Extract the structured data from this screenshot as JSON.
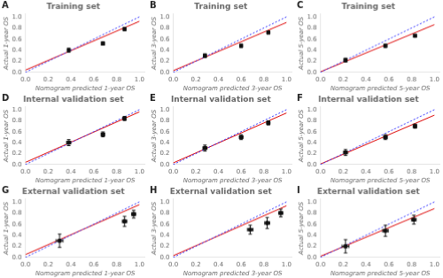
{
  "chart_data": [
    {
      "type": "scatter",
      "title": "Training set",
      "annotations": [
        "A"
      ],
      "x_label": "Nomogram predicted 1-year OS",
      "y_label": "Actual 1-year OS",
      "xlim": [
        0.0,
        1.05
      ],
      "ylim": [
        0.0,
        1.05
      ],
      "xticks": [
        {
          "value": 0.0,
          "label": "0.0"
        },
        0.2,
        0.4,
        0.6,
        0.8,
        {
          "value": 1.0,
          "label": "1.0"
        }
      ],
      "yticks": [
        {
          "value": 0.0,
          "label": "0.0"
        },
        0.2,
        0.4,
        0.6,
        0.8,
        {
          "value": 1.0,
          "label": "1.0"
        }
      ],
      "grid": false,
      "series": [
        {
          "type": "line",
          "line_style": "dotted",
          "color": "#3333ff",
          "x": [
            0,
            1
          ],
          "values": [
            0,
            1
          ]
        },
        {
          "type": "line",
          "line_style": "solid",
          "color": "#dd0000",
          "x": [
            0.0,
            1.0
          ],
          "values": [
            0.04,
            0.92
          ]
        },
        {
          "type": "scatter",
          "marker": "square",
          "color": "#111111",
          "x": [
            0.38,
            0.68,
            0.87
          ],
          "values": [
            0.4,
            0.52,
            0.78
          ],
          "yerr": [
            0.035,
            0.03,
            0.025
          ],
          "xerr": [
            0.012,
            0.01,
            0.01
          ]
        }
      ]
    },
    {
      "type": "scatter",
      "title": "Training set",
      "annotations": [
        "B"
      ],
      "x_label": "Nomogram predicted 3-year OS",
      "y_label": "Actual 3-year OS",
      "xlim": [
        0.0,
        1.05
      ],
      "ylim": [
        0.0,
        1.05
      ],
      "xticks": [
        {
          "value": 0.0,
          "label": "0.0"
        },
        0.2,
        0.4,
        0.6,
        0.8,
        {
          "value": 1.0,
          "label": "1.0"
        }
      ],
      "yticks": [
        {
          "value": 0.0,
          "label": "0.0"
        },
        0.2,
        0.4,
        0.6,
        0.8,
        {
          "value": 1.0,
          "label": "1.0"
        }
      ],
      "grid": false,
      "series": [
        {
          "type": "line",
          "line_style": "dotted",
          "color": "#3333ff",
          "x": [
            0,
            1
          ],
          "values": [
            0,
            1
          ]
        },
        {
          "type": "line",
          "line_style": "solid",
          "color": "#dd0000",
          "x": [
            0.0,
            1.0
          ],
          "values": [
            0.03,
            0.9
          ]
        },
        {
          "type": "scatter",
          "marker": "square",
          "color": "#111111",
          "x": [
            0.28,
            0.6,
            0.84
          ],
          "values": [
            0.3,
            0.48,
            0.72
          ],
          "yerr": [
            0.035,
            0.03,
            0.025
          ],
          "xerr": [
            0.012,
            0.01,
            0.01
          ]
        }
      ]
    },
    {
      "type": "scatter",
      "title": "Training set",
      "annotations": [
        "C"
      ],
      "x_label": "Nomogram predicted 5-year OS",
      "y_label": "Actual 5-year OS",
      "xlim": [
        0.0,
        1.05
      ],
      "ylim": [
        0.0,
        1.05
      ],
      "xticks": [
        {
          "value": 0.0,
          "label": "0.0"
        },
        0.2,
        0.4,
        0.6,
        0.8,
        {
          "value": 1.0,
          "label": "1.0"
        }
      ],
      "yticks": [
        {
          "value": 0.0,
          "label": "0.0"
        },
        0.2,
        0.4,
        0.6,
        0.8,
        {
          "value": 1.0,
          "label": "1.0"
        }
      ],
      "grid": false,
      "series": [
        {
          "type": "line",
          "line_style": "dotted",
          "color": "#3333ff",
          "x": [
            0,
            1
          ],
          "values": [
            0,
            1
          ]
        },
        {
          "type": "line",
          "line_style": "solid",
          "color": "#dd0000",
          "x": [
            0.0,
            1.0
          ],
          "values": [
            0.01,
            0.86
          ]
        },
        {
          "type": "scatter",
          "marker": "square",
          "color": "#111111",
          "x": [
            0.22,
            0.57,
            0.83
          ],
          "values": [
            0.22,
            0.48,
            0.66
          ],
          "yerr": [
            0.035,
            0.03,
            0.025
          ],
          "xerr": [
            0.012,
            0.01,
            0.01
          ]
        }
      ]
    },
    {
      "type": "scatter",
      "title": "Internal validation set",
      "annotations": [
        "D"
      ],
      "x_label": "Nomogram predicted 1-year OS",
      "y_label": "Actual 1-year OS",
      "xlim": [
        0.0,
        1.05
      ],
      "ylim": [
        0.0,
        1.05
      ],
      "xticks": [
        {
          "value": 0.0,
          "label": "0.0"
        },
        0.2,
        0.4,
        0.6,
        0.8,
        {
          "value": 1.0,
          "label": "1.0"
        }
      ],
      "yticks": [
        {
          "value": 0.0,
          "label": "0.0"
        },
        0.2,
        0.4,
        0.6,
        0.8,
        {
          "value": 1.0,
          "label": "1.0"
        }
      ],
      "grid": false,
      "series": [
        {
          "type": "line",
          "line_style": "dotted",
          "color": "#3333ff",
          "x": [
            0,
            1
          ],
          "values": [
            0,
            1
          ]
        },
        {
          "type": "line",
          "line_style": "solid",
          "color": "#dd0000",
          "x": [
            0.0,
            1.0
          ],
          "values": [
            0.04,
            0.96
          ]
        },
        {
          "type": "scatter",
          "marker": "square",
          "color": "#111111",
          "x": [
            0.38,
            0.68,
            0.87
          ],
          "values": [
            0.4,
            0.55,
            0.84
          ],
          "yerr": [
            0.055,
            0.045,
            0.038
          ],
          "xerr": [
            0.018,
            0.016,
            0.014
          ]
        }
      ]
    },
    {
      "type": "scatter",
      "title": "Internal validation set",
      "annotations": [
        "E"
      ],
      "x_label": "Nomogram predicted 3-year OS",
      "y_label": "Actual 3-year OS",
      "xlim": [
        0.0,
        1.05
      ],
      "ylim": [
        0.0,
        1.05
      ],
      "xticks": [
        {
          "value": 0.0,
          "label": "0.0"
        },
        0.2,
        0.4,
        0.6,
        0.8,
        {
          "value": 1.0,
          "label": "1.0"
        }
      ],
      "yticks": [
        {
          "value": 0.0,
          "label": "0.0"
        },
        0.2,
        0.4,
        0.6,
        0.8,
        {
          "value": 1.0,
          "label": "1.0"
        }
      ],
      "grid": false,
      "series": [
        {
          "type": "line",
          "line_style": "dotted",
          "color": "#3333ff",
          "x": [
            0,
            1
          ],
          "values": [
            0,
            1
          ]
        },
        {
          "type": "line",
          "line_style": "solid",
          "color": "#dd0000",
          "x": [
            0.0,
            1.0
          ],
          "values": [
            0.03,
            0.94
          ]
        },
        {
          "type": "scatter",
          "marker": "square",
          "color": "#111111",
          "x": [
            0.28,
            0.6,
            0.84
          ],
          "values": [
            0.3,
            0.5,
            0.76
          ],
          "yerr": [
            0.055,
            0.045,
            0.038
          ],
          "xerr": [
            0.018,
            0.016,
            0.014
          ]
        }
      ]
    },
    {
      "type": "scatter",
      "title": "Internal validation set",
      "annotations": [
        "F"
      ],
      "x_label": "Nomogram predicted 5-year OS",
      "y_label": "Actual 5-year OS",
      "xlim": [
        0.0,
        1.05
      ],
      "ylim": [
        0.0,
        1.05
      ],
      "xticks": [
        {
          "value": 0.0,
          "label": "0.0"
        },
        0.2,
        0.4,
        0.6,
        0.8,
        {
          "value": 1.0,
          "label": "1.0"
        }
      ],
      "yticks": [
        {
          "value": 0.0,
          "label": "0.0"
        },
        0.2,
        0.4,
        0.6,
        0.8,
        {
          "value": 1.0,
          "label": "1.0"
        }
      ],
      "grid": false,
      "series": [
        {
          "type": "line",
          "line_style": "dotted",
          "color": "#3333ff",
          "x": [
            0,
            1
          ],
          "values": [
            0,
            1
          ]
        },
        {
          "type": "line",
          "line_style": "solid",
          "color": "#dd0000",
          "x": [
            0.0,
            1.0
          ],
          "values": [
            0.01,
            0.9
          ]
        },
        {
          "type": "scatter",
          "marker": "square",
          "color": "#111111",
          "x": [
            0.22,
            0.57,
            0.83
          ],
          "values": [
            0.22,
            0.5,
            0.7
          ],
          "yerr": [
            0.055,
            0.045,
            0.038
          ],
          "xerr": [
            0.018,
            0.016,
            0.014
          ]
        }
      ]
    },
    {
      "type": "scatter",
      "title": "External validation set",
      "annotations": [
        "G"
      ],
      "x_label": "Nomogram predicted 1-year OS",
      "y_label": "Actual 1-year OS",
      "xlim": [
        0.0,
        1.05
      ],
      "ylim": [
        0.0,
        1.05
      ],
      "xticks": [
        {
          "value": 0.0,
          "label": "0.0"
        },
        0.2,
        0.4,
        0.6,
        0.8,
        {
          "value": 1.0,
          "label": "1.0"
        }
      ],
      "yticks": [
        {
          "value": 0.0,
          "label": "0.0"
        },
        0.2,
        0.4,
        0.6,
        0.8,
        {
          "value": 1.0,
          "label": "1.0"
        }
      ],
      "grid": false,
      "series": [
        {
          "type": "line",
          "line_style": "dotted",
          "color": "#3333ff",
          "x": [
            0,
            1
          ],
          "values": [
            0,
            1
          ]
        },
        {
          "type": "line",
          "line_style": "solid",
          "color": "#dd0000",
          "x": [
            0.0,
            1.0
          ],
          "values": [
            0.05,
            0.95
          ]
        },
        {
          "type": "scatter",
          "marker": "square",
          "color": "#111111",
          "x": [
            0.3,
            0.87,
            0.95
          ],
          "values": [
            0.3,
            0.65,
            0.78
          ],
          "yerr": [
            0.12,
            0.09,
            0.07
          ],
          "xerr": [
            0.03,
            0.02,
            0.018
          ]
        }
      ]
    },
    {
      "type": "scatter",
      "title": "External validation set",
      "annotations": [
        "H"
      ],
      "x_label": "Nomogram predicted 3-year OS",
      "y_label": "Actual 3-year OS",
      "xlim": [
        0.0,
        1.05
      ],
      "ylim": [
        0.0,
        1.05
      ],
      "xticks": [
        {
          "value": 0.0,
          "label": "0.0"
        },
        0.2,
        0.4,
        0.6,
        0.8,
        {
          "value": 1.0,
          "label": "1.0"
        }
      ],
      "yticks": [
        {
          "value": 0.0,
          "label": "0.0"
        },
        0.2,
        0.4,
        0.6,
        0.8,
        {
          "value": 1.0,
          "label": "1.0"
        }
      ],
      "grid": false,
      "series": [
        {
          "type": "line",
          "line_style": "dotted",
          "color": "#3333ff",
          "x": [
            0,
            1
          ],
          "values": [
            0,
            1
          ]
        },
        {
          "type": "line",
          "line_style": "solid",
          "color": "#dd0000",
          "x": [
            0.0,
            1.0
          ],
          "values": [
            0.03,
            0.93
          ]
        },
        {
          "type": "scatter",
          "marker": "square",
          "color": "#111111",
          "x": [
            0.68,
            0.83,
            0.95
          ],
          "values": [
            0.5,
            0.62,
            0.8
          ],
          "yerr": [
            0.08,
            0.1,
            0.07
          ],
          "xerr": [
            0.025,
            0.022,
            0.018
          ]
        }
      ]
    },
    {
      "type": "scatter",
      "title": "External validation set",
      "annotations": [
        "I"
      ],
      "x_label": "Nomogram predicted 5-year OS",
      "y_label": "Actual 5-year OS",
      "xlim": [
        0.0,
        1.05
      ],
      "ylim": [
        0.0,
        1.05
      ],
      "xticks": [
        {
          "value": 0.0,
          "label": "0.0"
        },
        0.2,
        0.4,
        0.6,
        0.8,
        {
          "value": 1.0,
          "label": "1.0"
        }
      ],
      "yticks": [
        {
          "value": 0.0,
          "label": "0.0"
        },
        0.2,
        0.4,
        0.6,
        0.8,
        {
          "value": 1.0,
          "label": "1.0"
        }
      ],
      "grid": false,
      "series": [
        {
          "type": "line",
          "line_style": "dotted",
          "color": "#3333ff",
          "x": [
            0,
            1
          ],
          "values": [
            0,
            1
          ]
        },
        {
          "type": "line",
          "line_style": "solid",
          "color": "#dd0000",
          "x": [
            0.0,
            1.0
          ],
          "values": [
            0.02,
            0.88
          ]
        },
        {
          "type": "scatter",
          "marker": "square",
          "color": "#111111",
          "x": [
            0.22,
            0.57,
            0.82
          ],
          "values": [
            0.2,
            0.48,
            0.68
          ],
          "yerr": [
            0.12,
            0.1,
            0.08
          ],
          "xerr": [
            0.03,
            0.025,
            0.02
          ]
        }
      ]
    }
  ]
}
